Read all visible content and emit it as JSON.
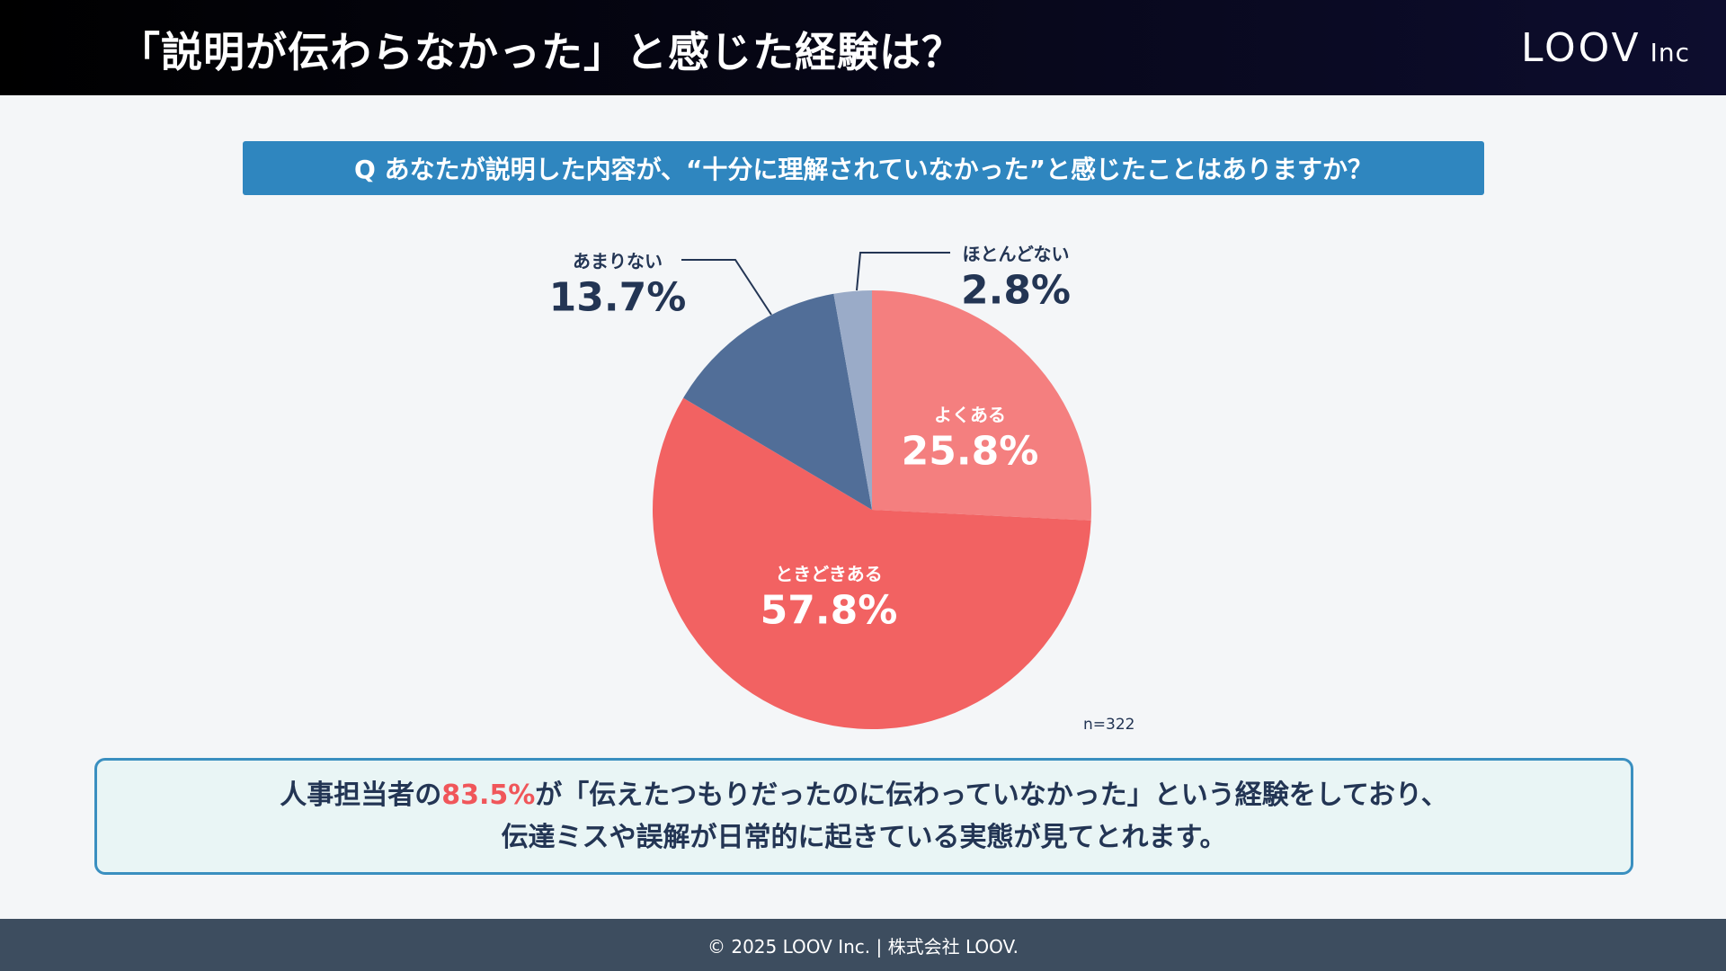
{
  "header": {
    "title": "「説明が伝わらなかった」と感じた経験は？",
    "logo_main": "LOOV",
    "logo_sub": "Inc"
  },
  "question": "Q あなたが説明した内容が、“十分に理解されていなかった”と感じたことはありますか？",
  "chart_data": {
    "type": "pie",
    "start": "top, clockwise",
    "slices": [
      {
        "label": "よくある",
        "value": 25.8,
        "display": "25.8%",
        "color": "#f47f7f"
      },
      {
        "label": "ときどきある",
        "value": 57.8,
        "display": "57.8%",
        "color": "#f26262"
      },
      {
        "label": "あまりない",
        "value": 13.7,
        "display": "13.7%",
        "color": "#516e98"
      },
      {
        "label": "ほとんどない",
        "value": 2.8,
        "display": "2.8%",
        "color": "#9aabc8"
      }
    ],
    "note": "n=322"
  },
  "callout": {
    "line1_pre": "人事担当者の",
    "line1_highlight": "83.5%",
    "line1_post": "が「伝えたつもりだったのに伝わっていなかった」という経験をしており、",
    "line2": "伝達ミスや誤解が日常的に起きている実態が見てとれます。",
    "highlight_color": "#f0565a"
  },
  "footer": "© 2025 LOOV Inc. | 株式会社 LOOV."
}
